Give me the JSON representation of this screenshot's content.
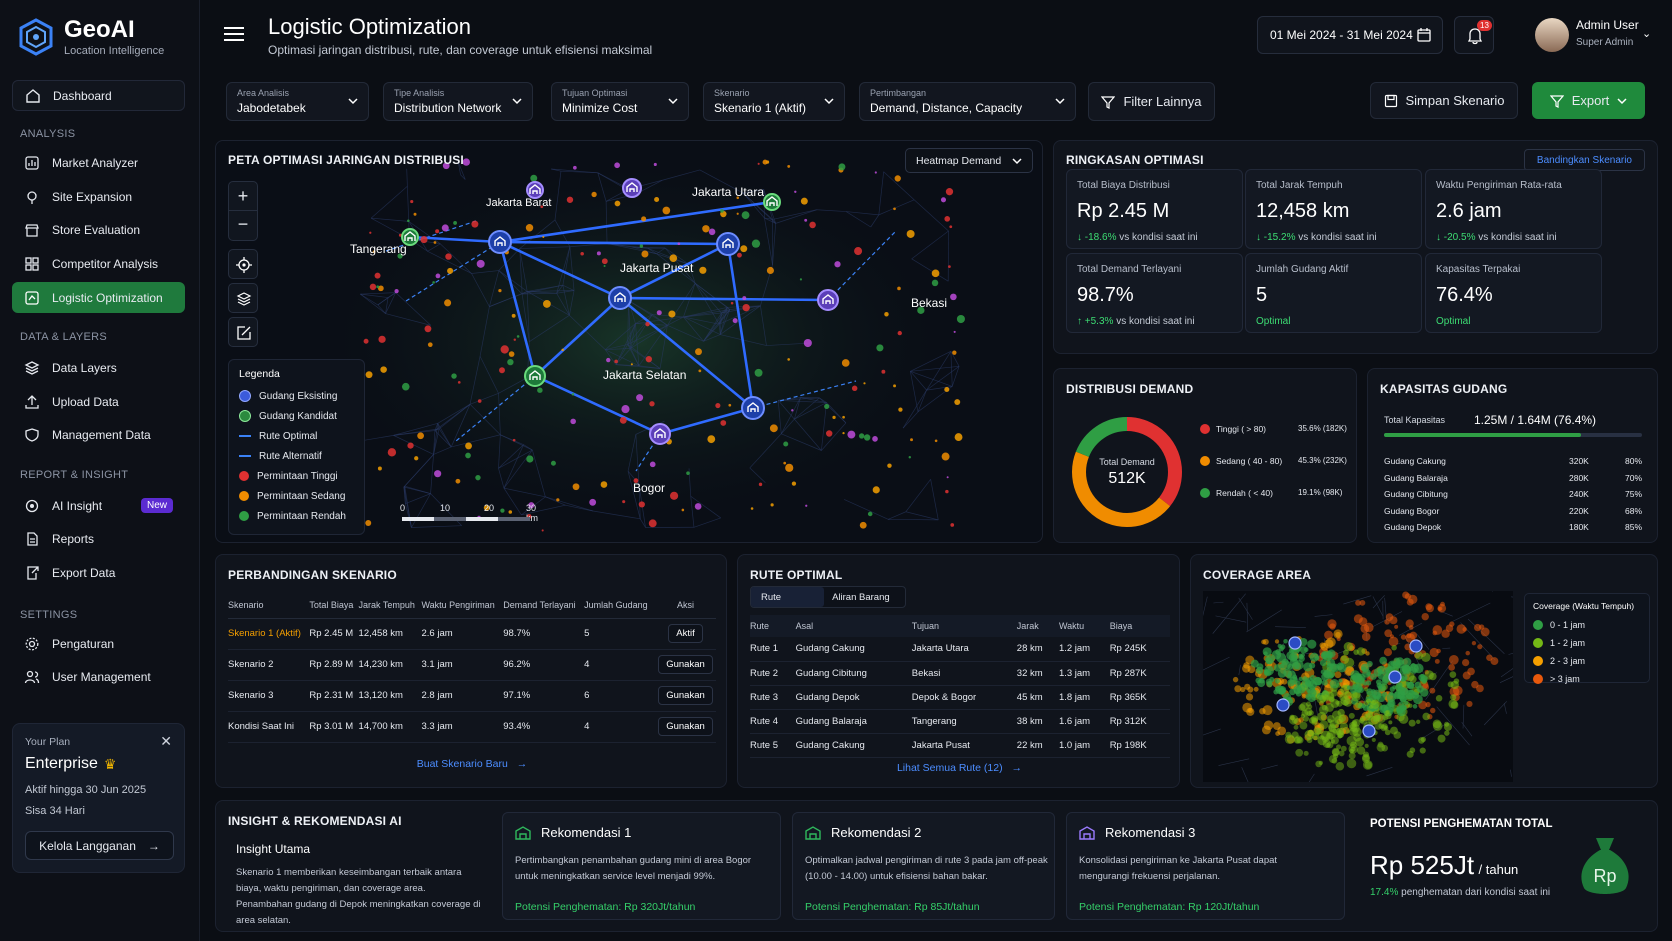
{
  "app": {
    "name": "GeoAI",
    "tagline": "Location Intelligence"
  },
  "nav": {
    "dashboard": "Dashboard",
    "analysis_label": "ANALYSIS",
    "analysis": [
      "Market Analyzer",
      "Site Expansion",
      "Store Evaluation",
      "Competitor Analysis",
      "Logistic Optimization"
    ],
    "data_label": "DATA & LAYERS",
    "data": [
      "Data Layers",
      "Upload Data",
      "Management Data"
    ],
    "report_label": "REPORT & INSIGHT",
    "report": [
      "AI Insight",
      "Reports",
      "Export Data"
    ],
    "new_badge": "New",
    "settings_label": "SETTINGS",
    "settings": [
      "Pengaturan",
      "User Management"
    ]
  },
  "plan": {
    "label": "Your Plan",
    "name": "Enterprise",
    "active": "Aktif hingga 30 Jun 2025",
    "remaining": "Sisa 34 Hari",
    "button": "Kelola Langganan"
  },
  "header": {
    "title": "Logistic Optimization",
    "subtitle": "Optimasi jaringan distribusi, rute, dan coverage untuk efisiensi maksimal",
    "date_range": "01 Mei 2024 - 31 Mei 2024",
    "notif_count": "13",
    "user_name": "Admin User",
    "user_role": "Super Admin"
  },
  "filters": [
    {
      "label": "Area Analisis",
      "value": "Jabodetabek"
    },
    {
      "label": "Tipe Analisis",
      "value": "Distribution Network"
    },
    {
      "label": "Tujuan Optimasi",
      "value": "Minimize Cost"
    },
    {
      "label": "Skenario",
      "value": "Skenario 1 (Aktif)"
    },
    {
      "label": "Pertimbangan",
      "value": "Demand, Distance, Capacity"
    }
  ],
  "toolbar": {
    "more_filters": "Filter Lainnya",
    "save": "Simpan Skenario",
    "export": "Export"
  },
  "map": {
    "title": "PETA OPTIMASI JARINGAN DISTRIBUSI",
    "layer_select": "Heatmap Demand",
    "cities": [
      "Jakarta Barat",
      "Jakarta Utara",
      "Tangerang",
      "Jakarta Pusat",
      "Bekasi",
      "Jakarta Selatan",
      "Bogor"
    ],
    "legend_title": "Legenda",
    "legend": [
      "Gudang Eksisting",
      "Gudang Kandidat",
      "Rute Optimal",
      "Rute Alternatif",
      "Permintaan Tinggi",
      "Permintaan Sedang",
      "Permintaan Rendah"
    ],
    "scale": [
      "0",
      "10",
      "20",
      "30 km"
    ]
  },
  "summary": {
    "title": "RINGKASAN OPTIMASI",
    "compare_btn": "Bandingkan Skenario",
    "kpis": [
      {
        "label": "Total Biaya Distribusi",
        "value": "Rp 2.45 M",
        "delta": "-18.6%",
        "note": "vs kondisi saat ini"
      },
      {
        "label": "Total Jarak Tempuh",
        "value": "12,458 km",
        "delta": "-15.2%",
        "note": "vs kondisi saat ini"
      },
      {
        "label": "Waktu Pengiriman Rata-rata",
        "value": "2.6 jam",
        "delta": "-20.5%",
        "note": "vs kondisi saat ini"
      },
      {
        "label": "Total Demand Terlayani",
        "value": "98.7%",
        "delta": "+5.3%",
        "note": "vs kondisi saat ini"
      },
      {
        "label": "Jumlah Gudang Aktif",
        "value": "5",
        "delta": "",
        "note": "Optimal"
      },
      {
        "label": "Kapasitas Terpakai",
        "value": "76.4%",
        "delta": "",
        "note": "Optimal"
      }
    ]
  },
  "demand": {
    "title": "DISTRIBUSI DEMAND",
    "center_label": "Total Demand",
    "center_value": "512K",
    "items": [
      {
        "label": "Tinggi ( > 80)",
        "value": "35.6% (182K)",
        "color": "#e03131"
      },
      {
        "label": "Sedang ( 40 - 80)",
        "value": "45.3% (232K)",
        "color": "#f08c00"
      },
      {
        "label": "Rendah ( < 40)",
        "value": "19.1% (98K)",
        "color": "#2f9e44"
      }
    ]
  },
  "capacity": {
    "title": "KAPASITAS GUDANG",
    "total_label": "Total Kapasitas",
    "total_value": "1.25M / 1.64M (76.4%)",
    "total_pct": 76.4,
    "rows": [
      {
        "name": "Gudang Cakung",
        "cap": "320K",
        "pct": "80%"
      },
      {
        "name": "Gudang Balaraja",
        "cap": "280K",
        "pct": "70%"
      },
      {
        "name": "Gudang Cibitung",
        "cap": "240K",
        "pct": "75%"
      },
      {
        "name": "Gudang Bogor",
        "cap": "220K",
        "pct": "68%"
      },
      {
        "name": "Gudang Depok",
        "cap": "180K",
        "pct": "85%"
      }
    ]
  },
  "scenarios": {
    "title": "PERBANDINGAN SKENARIO",
    "headers": [
      "Skenario",
      "Total Biaya",
      "Jarak Tempuh",
      "Waktu Pengiriman",
      "Demand Terlayani",
      "Jumlah Gudang",
      "Aksi"
    ],
    "rows": [
      [
        "Skenario 1 (Aktif)",
        "Rp 2.45 M",
        "12,458 km",
        "2.6 jam",
        "98.7%",
        "5",
        "Aktif"
      ],
      [
        "Skenario 2",
        "Rp 2.89 M",
        "14,230 km",
        "3.1 jam",
        "96.2%",
        "4",
        "Gunakan"
      ],
      [
        "Skenario 3",
        "Rp 2.31 M",
        "13,120 km",
        "2.8 jam",
        "97.1%",
        "6",
        "Gunakan"
      ],
      [
        "Kondisi Saat Ini",
        "Rp 3.01 M",
        "14,700 km",
        "3.3 jam",
        "93.4%",
        "4",
        "Gunakan"
      ]
    ],
    "new_btn": "Buat Skenario Baru"
  },
  "routes": {
    "title": "RUTE OPTIMAL",
    "tabs": [
      "Rute",
      "Aliran Barang"
    ],
    "headers": [
      "Rute",
      "Asal",
      "Tujuan",
      "Jarak",
      "Waktu",
      "Biaya"
    ],
    "rows": [
      [
        "Rute 1",
        "Gudang Cakung",
        "Jakarta Utara",
        "28 km",
        "1.2 jam",
        "Rp 245K"
      ],
      [
        "Rute 2",
        "Gudang Cibitung",
        "Bekasi",
        "32 km",
        "1.3 jam",
        "Rp 287K"
      ],
      [
        "Rute 3",
        "Gudang Depok",
        "Depok & Bogor",
        "45 km",
        "1.8 jam",
        "Rp 365K"
      ],
      [
        "Rute 4",
        "Gudang Balaraja",
        "Tangerang",
        "38 km",
        "1.6 jam",
        "Rp 312K"
      ],
      [
        "Rute 5",
        "Gudang Cakung",
        "Jakarta Pusat",
        "22 km",
        "1.0 jam",
        "Rp 198K"
      ]
    ],
    "all_link": "Lihat Semua Rute (12)"
  },
  "coverage": {
    "title": "COVERAGE AREA",
    "legend_title": "Coverage (Waktu Tempuh)",
    "legend": [
      {
        "label": "0 - 1 jam",
        "color": "#2f9e44"
      },
      {
        "label": "1 - 2 jam",
        "color": "#74b816"
      },
      {
        "label": "2 - 3 jam",
        "color": "#f59f00"
      },
      {
        "label": "> 3 jam",
        "color": "#e8590c"
      }
    ]
  },
  "insight": {
    "title": "INSIGHT & REKOMENDASI AI",
    "main_title": "Insight Utama",
    "main_text": "Skenario 1 memberikan keseimbangan terbaik antara biaya, waktu pengiriman, dan coverage area. Penambahan gudang di Depok meningkatkan coverage di area selatan.",
    "recs": [
      {
        "title": "Rekomendasi 1",
        "text": "Pertimbangkan penambahan gudang mini di area Bogor untuk meningkatkan service level menjadi 99%.",
        "saving": "Potensi Penghematan: Rp 320Jt/tahun"
      },
      {
        "title": "Rekomendasi 2",
        "text": "Optimalkan jadwal pengiriman di rute 3 pada jam off-peak (10.00 - 14.00) untuk efisiensi bahan bakar.",
        "saving": "Potensi Penghematan: Rp 85Jt/tahun"
      },
      {
        "title": "Rekomendasi 3",
        "text": "Konsolidasi pengiriman ke Jakarta Pusat dapat mengurangi frekuensi perjalanan.",
        "saving": "Potensi Penghematan: Rp 120Jt/tahun"
      }
    ]
  },
  "savings": {
    "title": "POTENSI PENGHEMATAN TOTAL",
    "value": "Rp 525Jt",
    "unit": "/ tahun",
    "pct": "17.4%",
    "note": "penghematan dari kondisi saat ini",
    "bag_label": "Rp"
  }
}
